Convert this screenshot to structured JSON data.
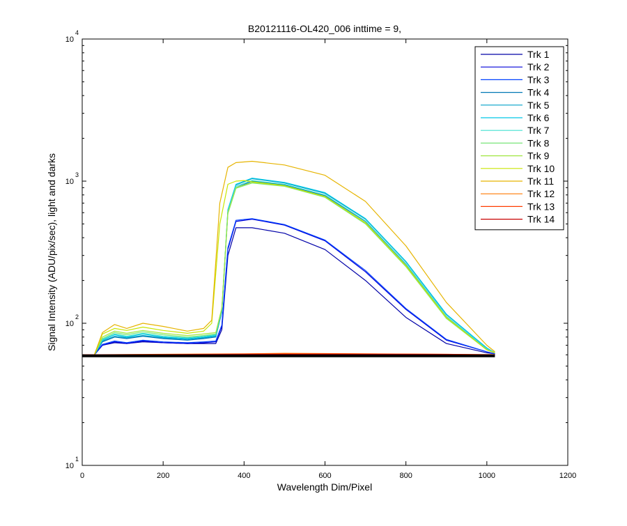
{
  "chart_data": {
    "type": "line",
    "title": "B20121116-OL420_006 inttime = 9,",
    "xlabel": "Wavelength Dim/Pixel",
    "ylabel": "Signal Intensity (ADU/pix/sec), light and darks",
    "xlim": [
      0,
      1200
    ],
    "ylim": [
      10,
      10000
    ],
    "yscale": "log",
    "x_ticks": [
      "0",
      "200",
      "400",
      "600",
      "800",
      "1000",
      "1200"
    ],
    "y_ticks": [
      {
        "base": "10",
        "exp": "1"
      },
      {
        "base": "10",
        "exp": "2"
      },
      {
        "base": "10",
        "exp": "3"
      },
      {
        "base": "10",
        "exp": "4"
      }
    ],
    "legend_position": "top-right",
    "series": [
      {
        "name": "Trk 1",
        "color": "#0000a8",
        "values": [
          [
            0,
            60
          ],
          [
            30,
            60
          ],
          [
            50,
            70
          ],
          [
            80,
            73
          ],
          [
            110,
            72
          ],
          [
            150,
            74
          ],
          [
            200,
            73
          ],
          [
            260,
            72
          ],
          [
            300,
            72
          ],
          [
            330,
            72
          ],
          [
            345,
            90
          ],
          [
            360,
            300
          ],
          [
            380,
            470
          ],
          [
            420,
            470
          ],
          [
            500,
            430
          ],
          [
            600,
            330
          ],
          [
            700,
            200
          ],
          [
            800,
            110
          ],
          [
            900,
            72
          ],
          [
            1000,
            62
          ],
          [
            1020,
            61
          ]
        ]
      },
      {
        "name": "Trk 2",
        "color": "#0000d8",
        "values": [
          [
            0,
            60
          ],
          [
            30,
            60
          ],
          [
            50,
            70
          ],
          [
            80,
            74
          ],
          [
            110,
            72
          ],
          [
            150,
            75
          ],
          [
            200,
            73
          ],
          [
            260,
            72
          ],
          [
            300,
            73
          ],
          [
            330,
            74
          ],
          [
            345,
            95
          ],
          [
            360,
            330
          ],
          [
            380,
            520
          ],
          [
            420,
            540
          ],
          [
            500,
            490
          ],
          [
            600,
            380
          ],
          [
            700,
            230
          ],
          [
            800,
            125
          ],
          [
            900,
            76
          ],
          [
            1000,
            63
          ],
          [
            1020,
            61
          ]
        ]
      },
      {
        "name": "Trk 3",
        "color": "#0040ff",
        "values": [
          [
            0,
            60
          ],
          [
            30,
            60
          ],
          [
            50,
            71
          ],
          [
            80,
            75
          ],
          [
            110,
            73
          ],
          [
            150,
            76
          ],
          [
            200,
            74
          ],
          [
            260,
            73
          ],
          [
            300,
            74
          ],
          [
            330,
            75
          ],
          [
            345,
            97
          ],
          [
            360,
            340
          ],
          [
            380,
            530
          ],
          [
            420,
            545
          ],
          [
            500,
            495
          ],
          [
            600,
            385
          ],
          [
            700,
            235
          ],
          [
            800,
            127
          ],
          [
            900,
            77
          ],
          [
            1000,
            63
          ],
          [
            1020,
            61
          ]
        ]
      },
      {
        "name": "Trk 4",
        "color": "#0078b4",
        "values": [
          [
            0,
            60
          ],
          [
            30,
            60
          ],
          [
            50,
            74
          ],
          [
            80,
            80
          ],
          [
            110,
            78
          ],
          [
            150,
            81
          ],
          [
            200,
            78
          ],
          [
            260,
            76
          ],
          [
            300,
            78
          ],
          [
            330,
            80
          ],
          [
            345,
            120
          ],
          [
            360,
            600
          ],
          [
            380,
            900
          ],
          [
            420,
            1000
          ],
          [
            500,
            940
          ],
          [
            600,
            790
          ],
          [
            700,
            520
          ],
          [
            800,
            260
          ],
          [
            900,
            110
          ],
          [
            1000,
            66
          ],
          [
            1020,
            62
          ]
        ]
      },
      {
        "name": "Trk 5",
        "color": "#00a0c8",
        "values": [
          [
            0,
            60
          ],
          [
            30,
            60
          ],
          [
            50,
            75
          ],
          [
            80,
            81
          ],
          [
            110,
            79
          ],
          [
            150,
            82
          ],
          [
            200,
            79
          ],
          [
            260,
            77
          ],
          [
            300,
            79
          ],
          [
            330,
            81
          ],
          [
            345,
            122
          ],
          [
            360,
            620
          ],
          [
            380,
            940
          ],
          [
            420,
            1040
          ],
          [
            500,
            970
          ],
          [
            600,
            820
          ],
          [
            700,
            540
          ],
          [
            800,
            270
          ],
          [
            900,
            115
          ],
          [
            1000,
            67
          ],
          [
            1020,
            62
          ]
        ]
      },
      {
        "name": "Trk 6",
        "color": "#00c8e6",
        "values": [
          [
            0,
            60
          ],
          [
            30,
            60
          ],
          [
            50,
            76
          ],
          [
            80,
            83
          ],
          [
            110,
            80
          ],
          [
            150,
            84
          ],
          [
            200,
            80
          ],
          [
            260,
            78
          ],
          [
            300,
            80
          ],
          [
            330,
            82
          ],
          [
            345,
            124
          ],
          [
            360,
            630
          ],
          [
            380,
            950
          ],
          [
            420,
            1050
          ],
          [
            500,
            980
          ],
          [
            600,
            830
          ],
          [
            700,
            545
          ],
          [
            800,
            272
          ],
          [
            900,
            116
          ],
          [
            1000,
            67
          ],
          [
            1020,
            62
          ]
        ]
      },
      {
        "name": "Trk 7",
        "color": "#40e0d0",
        "values": [
          [
            0,
            60
          ],
          [
            30,
            60
          ],
          [
            50,
            77
          ],
          [
            80,
            84
          ],
          [
            110,
            81
          ],
          [
            150,
            85
          ],
          [
            200,
            81
          ],
          [
            260,
            79
          ],
          [
            300,
            81
          ],
          [
            330,
            83
          ],
          [
            345,
            125
          ],
          [
            360,
            610
          ],
          [
            380,
            920
          ],
          [
            420,
            1010
          ],
          [
            500,
            950
          ],
          [
            600,
            800
          ],
          [
            700,
            525
          ],
          [
            800,
            262
          ],
          [
            900,
            112
          ],
          [
            1000,
            66
          ],
          [
            1020,
            62
          ]
        ]
      },
      {
        "name": "Trk 8",
        "color": "#78e678",
        "values": [
          [
            0,
            60
          ],
          [
            30,
            60
          ],
          [
            50,
            78
          ],
          [
            80,
            86
          ],
          [
            110,
            83
          ],
          [
            150,
            87
          ],
          [
            200,
            83
          ],
          [
            260,
            80
          ],
          [
            300,
            82
          ],
          [
            330,
            84
          ],
          [
            345,
            126
          ],
          [
            360,
            590
          ],
          [
            380,
            890
          ],
          [
            420,
            970
          ],
          [
            500,
            920
          ],
          [
            600,
            770
          ],
          [
            700,
            500
          ],
          [
            800,
            250
          ],
          [
            900,
            108
          ],
          [
            1000,
            65
          ],
          [
            1020,
            62
          ]
        ]
      },
      {
        "name": "Trk 9",
        "color": "#a0e640",
        "values": [
          [
            0,
            60
          ],
          [
            30,
            60
          ],
          [
            50,
            80
          ],
          [
            80,
            88
          ],
          [
            110,
            85
          ],
          [
            150,
            89
          ],
          [
            200,
            85
          ],
          [
            260,
            82
          ],
          [
            300,
            84
          ],
          [
            330,
            86
          ],
          [
            345,
            128
          ],
          [
            360,
            600
          ],
          [
            380,
            900
          ],
          [
            420,
            980
          ],
          [
            500,
            925
          ],
          [
            600,
            775
          ],
          [
            700,
            505
          ],
          [
            800,
            252
          ],
          [
            900,
            109
          ],
          [
            1000,
            65
          ],
          [
            1020,
            62
          ]
        ]
      },
      {
        "name": "Trk 10",
        "color": "#c8e600",
        "values": [
          [
            0,
            60
          ],
          [
            30,
            60
          ],
          [
            50,
            84
          ],
          [
            80,
            92
          ],
          [
            110,
            89
          ],
          [
            150,
            94
          ],
          [
            200,
            89
          ],
          [
            260,
            85
          ],
          [
            300,
            88
          ],
          [
            320,
            100
          ],
          [
            340,
            500
          ],
          [
            360,
            950
          ],
          [
            380,
            1000
          ],
          [
            400,
            1010
          ],
          [
            420,
            990
          ],
          [
            500,
            930
          ],
          [
            600,
            780
          ],
          [
            700,
            510
          ],
          [
            800,
            255
          ],
          [
            900,
            110
          ],
          [
            1000,
            65
          ],
          [
            1020,
            62
          ]
        ]
      },
      {
        "name": "Trk 11",
        "color": "#e6b400",
        "values": [
          [
            0,
            60
          ],
          [
            30,
            60
          ],
          [
            50,
            86
          ],
          [
            80,
            98
          ],
          [
            110,
            92
          ],
          [
            150,
            100
          ],
          [
            200,
            95
          ],
          [
            260,
            88
          ],
          [
            300,
            92
          ],
          [
            320,
            105
          ],
          [
            340,
            700
          ],
          [
            360,
            1250
          ],
          [
            380,
            1350
          ],
          [
            420,
            1380
          ],
          [
            500,
            1300
          ],
          [
            600,
            1100
          ],
          [
            700,
            720
          ],
          [
            800,
            350
          ],
          [
            900,
            140
          ],
          [
            1000,
            70
          ],
          [
            1020,
            63
          ]
        ]
      },
      {
        "name": "Trk 12",
        "color": "#ff7800",
        "values": [
          [
            0,
            60
          ],
          [
            200,
            60.5
          ],
          [
            400,
            61
          ],
          [
            500,
            61.5
          ],
          [
            700,
            61
          ],
          [
            900,
            60.5
          ],
          [
            1020,
            60
          ]
        ]
      },
      {
        "name": "Trk 13",
        "color": "#ff3c00",
        "values": [
          [
            0,
            60
          ],
          [
            200,
            60.3
          ],
          [
            400,
            60.8
          ],
          [
            600,
            61
          ],
          [
            800,
            60.7
          ],
          [
            1020,
            60.2
          ]
        ]
      },
      {
        "name": "Trk 14",
        "color": "#c80000",
        "values": [
          [
            0,
            60
          ],
          [
            300,
            60.2
          ],
          [
            600,
            60.5
          ],
          [
            900,
            60.3
          ],
          [
            1020,
            60
          ]
        ]
      }
    ],
    "dark_series": {
      "color": "#000000",
      "values": [
        [
          0,
          59
        ],
        [
          1020,
          59
        ]
      ]
    }
  }
}
